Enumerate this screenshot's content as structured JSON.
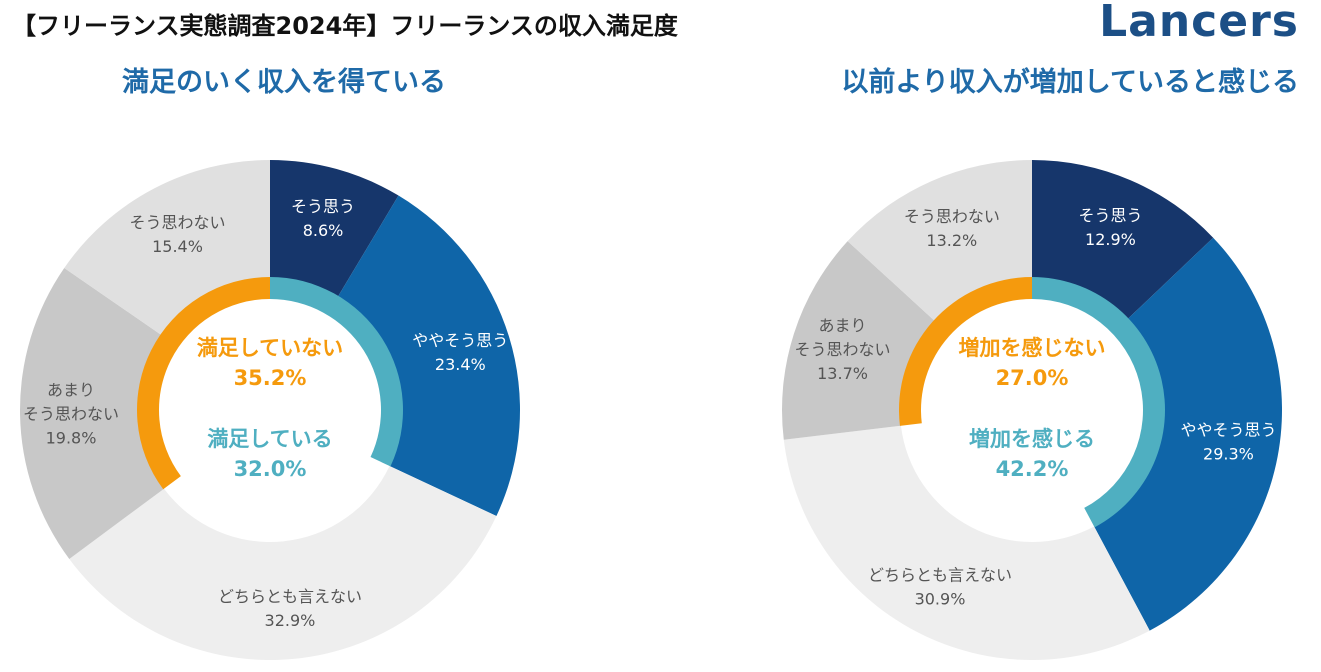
{
  "header": {
    "title": "【フリーランス実態調査2024年】フリーランスの収入満足度",
    "brand": "Lancers"
  },
  "colors": {
    "brand": "#1c4f86",
    "title_blue": "#1f6aa8",
    "dark_navy": "#16366b",
    "blue": "#0f65a8",
    "light_gray": "#e0e0e0",
    "mid_gray": "#c8c8c8",
    "pale_gray": "#eeeeee",
    "teal": "#4fafc1",
    "orange": "#f59a0d"
  },
  "chart_data": [
    {
      "type": "pie",
      "title": "満足のいく収入を得ている",
      "slices": [
        {
          "name": "そう思う",
          "value": 8.6,
          "value_label": "8.6%"
        },
        {
          "name": "ややそう思う",
          "value": 23.4,
          "value_label": "23.4%"
        },
        {
          "name": "どちらとも言えない",
          "value": 32.9,
          "value_label": "32.9%"
        },
        {
          "name": "あまり\nそう思わない",
          "value": 19.8,
          "value_label": "19.8%"
        },
        {
          "name": "そう思わない",
          "value": 15.4,
          "value_label": "15.4%"
        }
      ],
      "inner_ring": [
        {
          "name": "満足している",
          "value": 32.0,
          "value_label": "32.0%"
        },
        {
          "name": "満足していない",
          "value": 35.2,
          "value_label": "35.2%"
        }
      ]
    },
    {
      "type": "pie",
      "title": "以前より収入が増加していると感じる",
      "slices": [
        {
          "name": "そう思う",
          "value": 12.9,
          "value_label": "12.9%"
        },
        {
          "name": "ややそう思う",
          "value": 29.3,
          "value_label": "29.3%"
        },
        {
          "name": "どちらとも言えない",
          "value": 30.9,
          "value_label": "30.9%"
        },
        {
          "name": "あまり\nそう思わない",
          "value": 13.7,
          "value_label": "13.7%"
        },
        {
          "name": "そう思わない",
          "value": 13.2,
          "value_label": "13.2%"
        }
      ],
      "inner_ring": [
        {
          "name": "増加を感じる",
          "value": 42.2,
          "value_label": "42.2%"
        },
        {
          "name": "増加を感じない",
          "value": 27.0,
          "value_label": "27.0%"
        }
      ]
    }
  ]
}
